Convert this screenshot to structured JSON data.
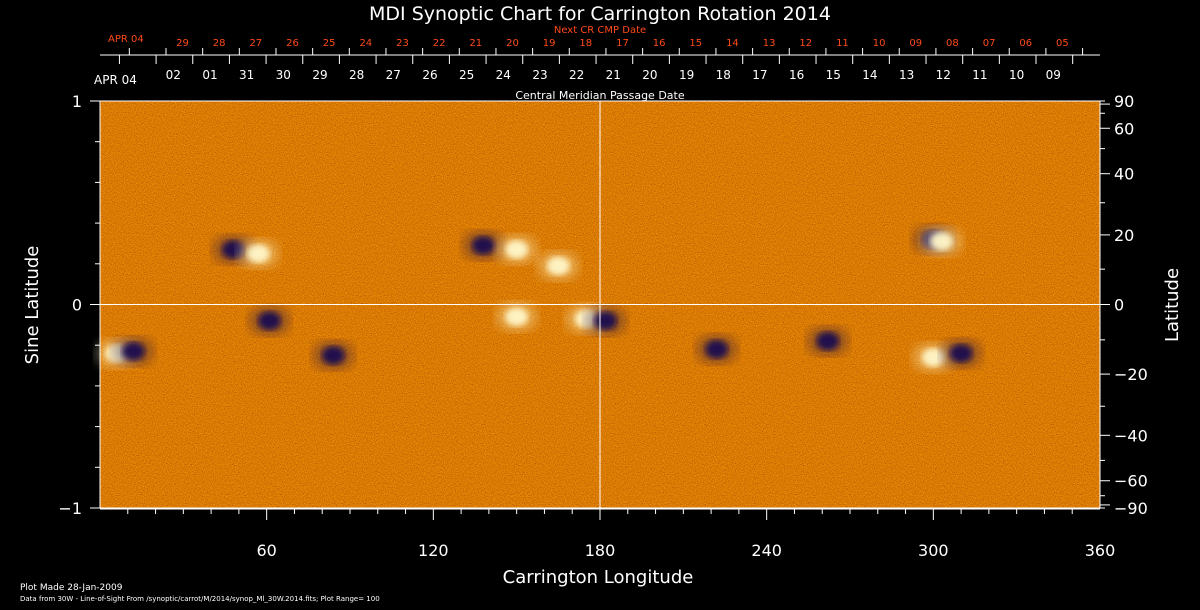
{
  "chart_data": {
    "type": "heatmap",
    "title": "MDI Synoptic Chart for Carrington Rotation 2014",
    "xlabel": "Carrington Longitude",
    "ylabel_left": "Sine Latitude",
    "ylabel_right": "Latitude",
    "top_axis_label": "Central Meridian Passage Date",
    "next_axis_label": "Next CR CMP Date",
    "xlim": [
      0,
      360
    ],
    "x_ticks": [
      60,
      120,
      180,
      240,
      300,
      360
    ],
    "sine_lat_ticks": [
      {
        "value": 1,
        "label": "1"
      },
      {
        "value": 0,
        "label": "0"
      },
      {
        "value": -1,
        "label": "−1"
      }
    ],
    "latitude_ticks": [
      {
        "deg": 90,
        "label": "90"
      },
      {
        "deg": 60,
        "label": "60"
      },
      {
        "deg": 40,
        "label": "40"
      },
      {
        "deg": 20,
        "label": "20"
      },
      {
        "deg": 0,
        "label": "0"
      },
      {
        "deg": -20,
        "label": "−20"
      },
      {
        "deg": -40,
        "label": "−40"
      },
      {
        "deg": -60,
        "label": "−60"
      },
      {
        "deg": -90,
        "label": "−90"
      }
    ],
    "cmp_start_label": "APR 04",
    "cmp_dates": [
      "02",
      "01",
      "31",
      "30",
      "29",
      "28",
      "27",
      "26",
      "25",
      "24",
      "23",
      "22",
      "21",
      "20",
      "19",
      "18",
      "17",
      "16",
      "15",
      "14",
      "13",
      "12",
      "11",
      "10",
      "09"
    ],
    "next_start_label": "APR 04",
    "next_dates": [
      "29",
      "28",
      "27",
      "26",
      "25",
      "24",
      "23",
      "22",
      "21",
      "20",
      "19",
      "18",
      "17",
      "16",
      "15",
      "14",
      "13",
      "12",
      "11",
      "10",
      "09",
      "08",
      "07",
      "06",
      "05"
    ],
    "plot_range": 100,
    "background_color": "#ff6a0a",
    "positive_color": "#fff6c8",
    "negative_color": "#1a0a50",
    "next_axis_color": "#ff4a1a",
    "active_regions": [
      {
        "lon": 48,
        "sinlat": 0.27,
        "polarity": "negative"
      },
      {
        "lon": 57,
        "sinlat": 0.25,
        "polarity": "positive"
      },
      {
        "lon": 138,
        "sinlat": 0.29,
        "polarity": "negative"
      },
      {
        "lon": 150,
        "sinlat": 0.27,
        "polarity": "positive"
      },
      {
        "lon": 165,
        "sinlat": 0.19,
        "polarity": "positive"
      },
      {
        "lon": 6,
        "sinlat": -0.24,
        "polarity": "positive"
      },
      {
        "lon": 12,
        "sinlat": -0.23,
        "polarity": "negative"
      },
      {
        "lon": 175,
        "sinlat": -0.07,
        "polarity": "positive"
      },
      {
        "lon": 182,
        "sinlat": -0.08,
        "polarity": "negative"
      },
      {
        "lon": 150,
        "sinlat": -0.06,
        "polarity": "positive"
      },
      {
        "lon": 61,
        "sinlat": -0.08,
        "polarity": "negative"
      },
      {
        "lon": 84,
        "sinlat": -0.25,
        "polarity": "negative"
      },
      {
        "lon": 300,
        "sinlat": 0.32,
        "polarity": "negative"
      },
      {
        "lon": 303,
        "sinlat": 0.31,
        "polarity": "positive"
      },
      {
        "lon": 300,
        "sinlat": -0.26,
        "polarity": "positive"
      },
      {
        "lon": 310,
        "sinlat": -0.24,
        "polarity": "negative"
      },
      {
        "lon": 222,
        "sinlat": -0.22,
        "polarity": "negative"
      },
      {
        "lon": 262,
        "sinlat": -0.18,
        "polarity": "negative"
      }
    ]
  },
  "footer": {
    "made": "Plot Made 28-Jan-2009",
    "source": "Data from 30W - Line-of-Sight From /synoptic/carrot/M/2014/synop_Ml_30W.2014.fits; Plot Range= 100"
  }
}
